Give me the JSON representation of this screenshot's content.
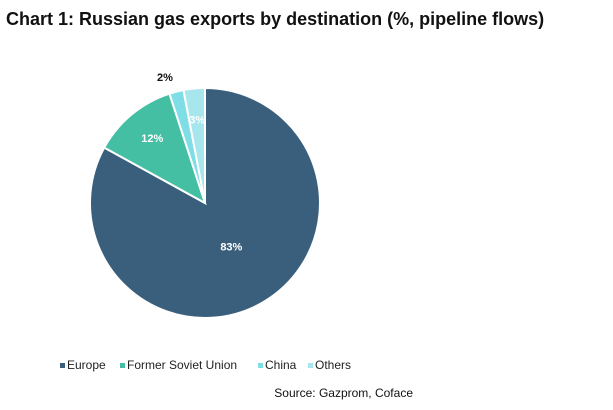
{
  "chart_data": {
    "type": "pie",
    "title": "Chart 1: Russian gas exports by destination (%, pipeline flows)",
    "categories": [
      "Europe",
      "Former Soviet Union",
      "China",
      "Others"
    ],
    "values": [
      83,
      12,
      2,
      3
    ],
    "value_labels": [
      "83%",
      "12%",
      "2%",
      "3%"
    ],
    "colors": [
      "#3a5f7d",
      "#45bfa3",
      "#7fdde6",
      "#a6e6ec"
    ],
    "source": "Source: Gazprom, Coface"
  }
}
